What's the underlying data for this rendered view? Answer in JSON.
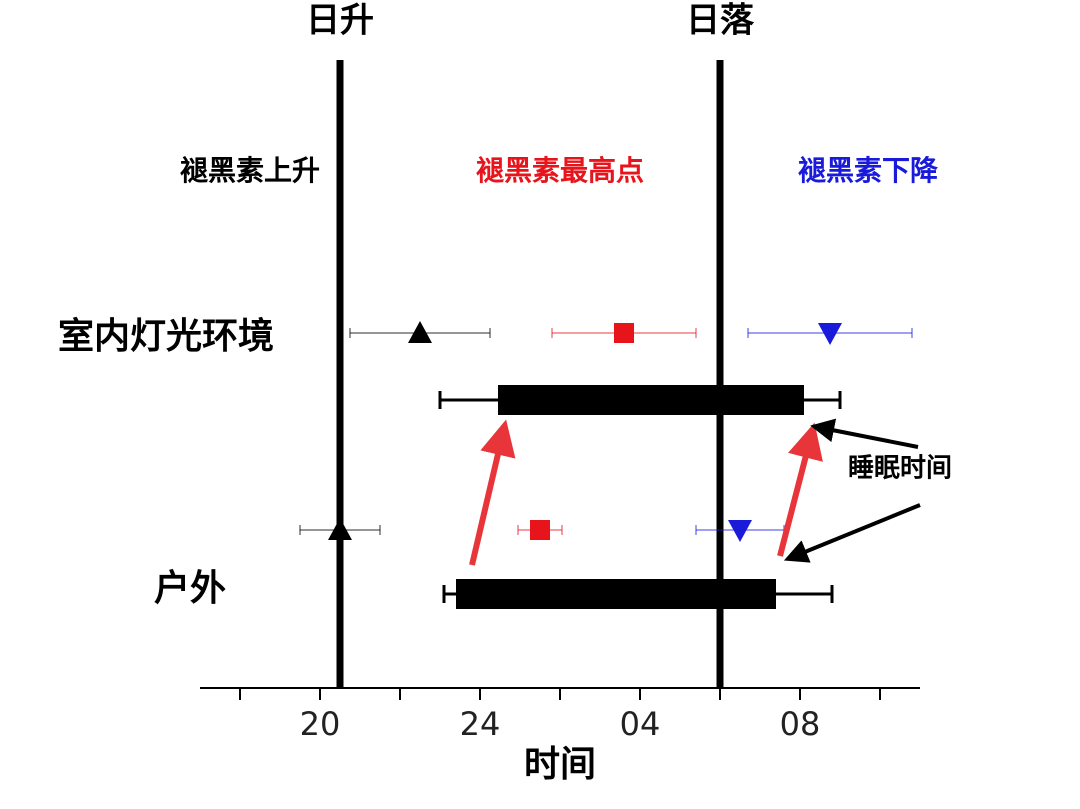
{
  "chart_data": {
    "type": "timeline",
    "xlabel": "时间",
    "xlim": [
      17,
      35
    ],
    "xticks": [
      20,
      24,
      {
        "value": 28,
        "label": "04"
      },
      {
        "value": 32,
        "label": "08"
      }
    ],
    "minor_xticks": [
      18,
      22,
      26,
      30,
      34
    ],
    "reference_lines": [
      {
        "label": "日升",
        "value": 20.5
      },
      {
        "label": "日落",
        "value": 30
      }
    ],
    "categories": [
      "室内灯光环境",
      "户外"
    ],
    "series": [
      {
        "name": "褪黑素上升",
        "color": "#000000",
        "marker": "triangle-up",
        "values": [
          22.5,
          20.5
        ],
        "errors": [
          1.75,
          1.0
        ]
      },
      {
        "name": "褪黑素最高点",
        "color": "#e8141b",
        "marker": "square",
        "values": [
          27.6,
          25.5
        ],
        "errors": [
          1.8,
          0.55
        ]
      },
      {
        "name": "褪黑素下降",
        "color": "#1a1adb",
        "marker": "triangle-down",
        "values": [
          32.75,
          30.5
        ],
        "errors": [
          2.05,
          1.1
        ]
      }
    ],
    "sleep": {
      "start": [
        24.45,
        23.4
      ],
      "end": [
        32.1,
        31.4
      ],
      "whisker_low": [
        23.0,
        23.1
      ],
      "whisker_high": [
        33.0,
        32.8
      ]
    },
    "annotation": "睡眠时间"
  }
}
